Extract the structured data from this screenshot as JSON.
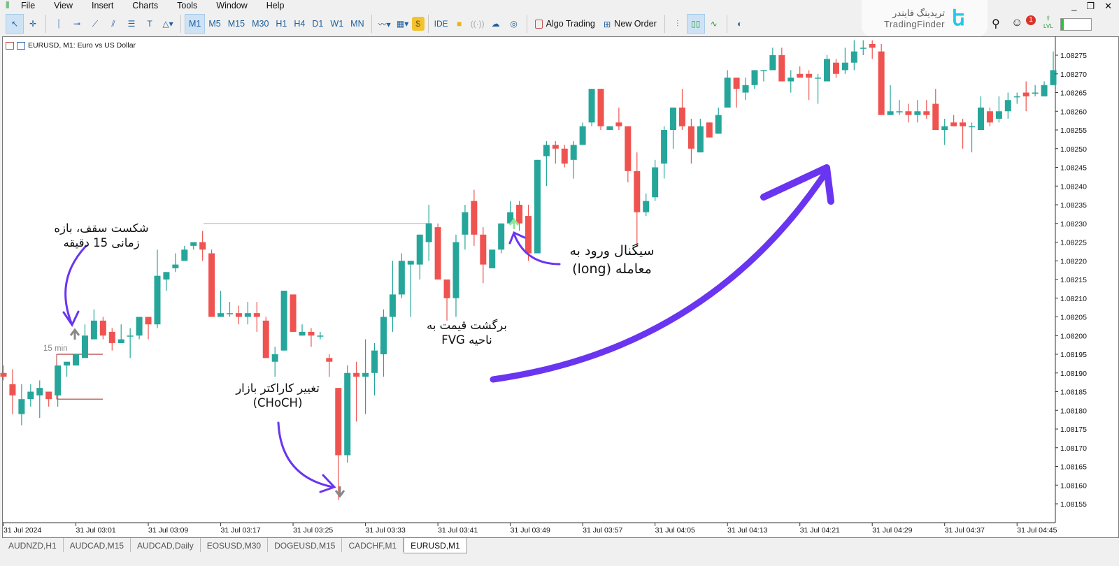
{
  "menu": [
    "File",
    "View",
    "Insert",
    "Charts",
    "Tools",
    "Window",
    "Help"
  ],
  "window_controls": {
    "minimize": "_",
    "restore": "❐",
    "close": "✕"
  },
  "toolbar": {
    "timeframes": [
      "M1",
      "M5",
      "M15",
      "M30",
      "H1",
      "H4",
      "D1",
      "W1",
      "MN"
    ],
    "active_timeframe": "M1",
    "ide_label": "IDE",
    "algo_trading_label": "Algo Trading",
    "new_order_label": "New Order",
    "notification_count": "1",
    "lvl_label": "LVL"
  },
  "brand": {
    "name_fa": "تریدینگ فایندر",
    "name_en": "TradingFinder"
  },
  "chart_title": "EURUSD, M1:  Euro vs US Dollar",
  "annotations": {
    "breakout": [
      "شکست سقف، بازه",
      "زمانی 15 دقیقه"
    ],
    "choch": [
      "تغییر کاراکتر بازار",
      "(CHoCH)"
    ],
    "fvg": [
      "برگشت قیمت به",
      "ناحیه FVG"
    ],
    "signal": [
      "سیگنال ورود به",
      "معامله (long)"
    ],
    "tf_label": "15 min"
  },
  "colors": {
    "bull": "#26a69a",
    "bear": "#ef5350",
    "arrow": "#6a35f0",
    "level_line": "#8fd49a",
    "range_line": "#b03a3a"
  },
  "tabs": [
    "AUDNZD,H1",
    "AUDCAD,M15",
    "AUDCAD,Daily",
    "EOSUSD,M30",
    "DOGEUSD,M15",
    "CADCHF,M1",
    "EURUSD,M1"
  ],
  "active_tab": "EURUSD,M1",
  "chart_data": {
    "type": "candlestick",
    "symbol": "EURUSD",
    "timeframe": "M1",
    "ylim": [
      1.08152,
      1.0828
    ],
    "yticks": [
      1.08275,
      1.0827,
      1.08265,
      1.0826,
      1.08255,
      1.0825,
      1.08245,
      1.0824,
      1.08235,
      1.0823,
      1.08225,
      1.0822,
      1.08215,
      1.0821,
      1.08205,
      1.082,
      1.08195,
      1.0819,
      1.08185,
      1.0818,
      1.08175,
      1.0817,
      1.08165,
      1.0816,
      1.08155
    ],
    "xticks": [
      "31 Jul 2024",
      "31 Jul 03:01",
      "31 Jul 03:09",
      "31 Jul 03:17",
      "31 Jul 03:25",
      "31 Jul 03:33",
      "31 Jul 03:41",
      "31 Jul 03:49",
      "31 Jul 03:57",
      "31 Jul 04:05",
      "31 Jul 04:13",
      "31 Jul 04:21",
      "31 Jul 04:29",
      "31 Jul 04:37",
      "31 Jul 04:45"
    ],
    "ohlc": [
      [
        1.0819,
        1.08192,
        1.08188,
        1.08189
      ],
      [
        1.08187,
        1.08191,
        1.08179,
        1.08184
      ],
      [
        1.08179,
        1.08187,
        1.08176,
        1.08183
      ],
      [
        1.08183,
        1.08187,
        1.08181,
        1.08185
      ],
      [
        1.08184,
        1.08188,
        1.08178,
        1.08186
      ],
      [
        1.08185,
        1.08185,
        1.08181,
        1.08183
      ],
      [
        1.08184,
        1.08192,
        1.08181,
        1.08192
      ],
      [
        1.08192,
        1.08193,
        1.08189,
        1.08193
      ],
      [
        1.08192,
        1.08195,
        1.08192,
        1.08195
      ],
      [
        1.08194,
        1.08203,
        1.08194,
        1.082
      ],
      [
        1.08199,
        1.08207,
        1.08199,
        1.08204
      ],
      [
        1.08204,
        1.08205,
        1.08199,
        1.082
      ],
      [
        1.08201,
        1.08202,
        1.08196,
        1.08198
      ],
      [
        1.08198,
        1.08203,
        1.08198,
        1.08199
      ],
      [
        1.082,
        1.08202,
        1.08194,
        1.082
      ],
      [
        1.082,
        1.08205,
        1.08199,
        1.08205
      ],
      [
        1.08205,
        1.08205,
        1.08199,
        1.08203
      ],
      [
        1.08203,
        1.08223,
        1.08202,
        1.08216
      ],
      [
        1.08215,
        1.08217,
        1.08212,
        1.08217
      ],
      [
        1.08218,
        1.08222,
        1.08217,
        1.08219
      ],
      [
        1.0822,
        1.08224,
        1.0822,
        1.08223
      ],
      [
        1.08224,
        1.08225,
        1.08223,
        1.08225
      ],
      [
        1.08225,
        1.08228,
        1.0822,
        1.08223
      ],
      [
        1.08222,
        1.08223,
        1.08205,
        1.08205
      ],
      [
        1.08205,
        1.08212,
        1.08205,
        1.08206
      ],
      [
        1.08206,
        1.08209,
        1.08205,
        1.08206
      ],
      [
        1.08206,
        1.08208,
        1.08203,
        1.08205
      ],
      [
        1.08205,
        1.08209,
        1.08203,
        1.08206
      ],
      [
        1.08206,
        1.08209,
        1.08201,
        1.08205
      ],
      [
        1.08204,
        1.08205,
        1.08194,
        1.08194
      ],
      [
        1.08193,
        1.08197,
        1.08189,
        1.08195
      ],
      [
        1.08196,
        1.08212,
        1.08196,
        1.08212
      ],
      [
        1.08211,
        1.08211,
        1.08201,
        1.08201
      ],
      [
        1.082,
        1.08203,
        1.082,
        1.08201
      ],
      [
        1.08201,
        1.08202,
        1.08197,
        1.082
      ],
      [
        1.082,
        1.08201,
        1.08199,
        1.082
      ],
      [
        1.08194,
        1.08195,
        1.08189,
        1.08193
      ],
      [
        1.08186,
        1.08186,
        1.08156,
        1.08168
      ],
      [
        1.08168,
        1.08192,
        1.08166,
        1.0819
      ],
      [
        1.0819,
        1.08193,
        1.08177,
        1.08189
      ],
      [
        1.08189,
        1.08199,
        1.08179,
        1.0819
      ],
      [
        1.0819,
        1.08198,
        1.08184,
        1.08196
      ],
      [
        1.08195,
        1.08207,
        1.08189,
        1.08205
      ],
      [
        1.08205,
        1.0822,
        1.08201,
        1.08211
      ],
      [
        1.08211,
        1.08222,
        1.0821,
        1.0822
      ],
      [
        1.08219,
        1.0822,
        1.08205,
        1.0822
      ],
      [
        1.08219,
        1.08227,
        1.08215,
        1.08227
      ],
      [
        1.08225,
        1.08235,
        1.0822,
        1.0823
      ],
      [
        1.08229,
        1.0823,
        1.08215,
        1.08215
      ],
      [
        1.08215,
        1.08215,
        1.08204,
        1.0821
      ],
      [
        1.0821,
        1.08227,
        1.08205,
        1.08225
      ],
      [
        1.08227,
        1.08235,
        1.08223,
        1.08233
      ],
      [
        1.08236,
        1.08239,
        1.08224,
        1.08227
      ],
      [
        1.08227,
        1.08229,
        1.08214,
        1.08219
      ],
      [
        1.08218,
        1.08223,
        1.08218,
        1.08223
      ],
      [
        1.08223,
        1.0823,
        1.08222,
        1.0823
      ],
      [
        1.0823,
        1.08236,
        1.0823,
        1.08233
      ],
      [
        1.08235,
        1.08236,
        1.08228,
        1.0823
      ],
      [
        1.08232,
        1.08235,
        1.0822,
        1.08222
      ],
      [
        1.08222,
        1.08247,
        1.08222,
        1.08247
      ],
      [
        1.08248,
        1.08252,
        1.0824,
        1.08251
      ],
      [
        1.08251,
        1.08252,
        1.08246,
        1.0825
      ],
      [
        1.0825,
        1.08251,
        1.08245,
        1.08246
      ],
      [
        1.08247,
        1.08252,
        1.08242,
        1.08251
      ],
      [
        1.08251,
        1.08257,
        1.08251,
        1.08256
      ],
      [
        1.08257,
        1.08266,
        1.08256,
        1.08266
      ],
      [
        1.08266,
        1.08266,
        1.08255,
        1.08256
      ],
      [
        1.08255,
        1.08256,
        1.08255,
        1.08256
      ],
      [
        1.08257,
        1.08261,
        1.08255,
        1.08256
      ],
      [
        1.08256,
        1.08256,
        1.08241,
        1.08244
      ],
      [
        1.08244,
        1.08249,
        1.08224,
        1.08233
      ],
      [
        1.08233,
        1.08238,
        1.08232,
        1.08236
      ],
      [
        1.08237,
        1.08247,
        1.08236,
        1.08245
      ],
      [
        1.08246,
        1.08256,
        1.08242,
        1.08255
      ],
      [
        1.08255,
        1.08261,
        1.0825,
        1.08261
      ],
      [
        1.08261,
        1.08266,
        1.08255,
        1.08256
      ],
      [
        1.08256,
        1.08258,
        1.08246,
        1.0825
      ],
      [
        1.08249,
        1.08258,
        1.08249,
        1.08256
      ],
      [
        1.08257,
        1.08257,
        1.08253,
        1.08253
      ],
      [
        1.08254,
        1.08261,
        1.08254,
        1.08259
      ],
      [
        1.08261,
        1.08271,
        1.08261,
        1.08269
      ],
      [
        1.08269,
        1.08269,
        1.08261,
        1.08266
      ],
      [
        1.08265,
        1.08269,
        1.08263,
        1.08267
      ],
      [
        1.08267,
        1.08271,
        1.08266,
        1.08271
      ],
      [
        1.08271,
        1.08271,
        1.08268,
        1.08271
      ],
      [
        1.08271,
        1.08277,
        1.08271,
        1.08275
      ],
      [
        1.08275,
        1.08277,
        1.08268,
        1.08268
      ],
      [
        1.08268,
        1.08271,
        1.08265,
        1.08269
      ],
      [
        1.0827,
        1.08272,
        1.08269,
        1.08269
      ],
      [
        1.0827,
        1.08271,
        1.08263,
        1.08269
      ],
      [
        1.08269,
        1.0827,
        1.08262,
        1.08269
      ],
      [
        1.08268,
        1.08275,
        1.08268,
        1.08274
      ],
      [
        1.08273,
        1.08274,
        1.08269,
        1.0827
      ],
      [
        1.08271,
        1.08277,
        1.0827,
        1.08273
      ],
      [
        1.08273,
        1.08279,
        1.08271,
        1.08276
      ],
      [
        1.08277,
        1.08279,
        1.08275,
        1.08277
      ],
      [
        1.08278,
        1.08279,
        1.08274,
        1.08277
      ],
      [
        1.08276,
        1.08278,
        1.08259,
        1.08259
      ],
      [
        1.08259,
        1.08267,
        1.08259,
        1.0826
      ],
      [
        1.0826,
        1.08263,
        1.08259,
        1.0826
      ],
      [
        1.0826,
        1.08262,
        1.08257,
        1.08259
      ],
      [
        1.08259,
        1.08263,
        1.08257,
        1.0826
      ],
      [
        1.0826,
        1.08263,
        1.08258,
        1.08259
      ],
      [
        1.08262,
        1.08266,
        1.08255,
        1.08255
      ],
      [
        1.08255,
        1.08258,
        1.08251,
        1.08256
      ],
      [
        1.08257,
        1.08259,
        1.08256,
        1.08256
      ],
      [
        1.08257,
        1.08258,
        1.0825,
        1.08256
      ],
      [
        1.08256,
        1.08257,
        1.08249,
        1.08256
      ],
      [
        1.08255,
        1.08264,
        1.08255,
        1.08261
      ],
      [
        1.0826,
        1.08261,
        1.08256,
        1.08257
      ],
      [
        1.08258,
        1.08264,
        1.08257,
        1.0826
      ],
      [
        1.0826,
        1.08265,
        1.08258,
        1.08263
      ],
      [
        1.08264,
        1.08265,
        1.08262,
        1.08264
      ],
      [
        1.08265,
        1.08268,
        1.0826,
        1.08264
      ],
      [
        1.08265,
        1.08267,
        1.08264,
        1.08265
      ],
      [
        1.08264,
        1.08268,
        1.08264,
        1.08267
      ],
      [
        1.08267,
        1.08276,
        1.08267,
        1.08271
      ]
    ],
    "levels": {
      "prior_high": 1.0823,
      "range_high": 1.08195,
      "range_low": 1.08183
    }
  }
}
